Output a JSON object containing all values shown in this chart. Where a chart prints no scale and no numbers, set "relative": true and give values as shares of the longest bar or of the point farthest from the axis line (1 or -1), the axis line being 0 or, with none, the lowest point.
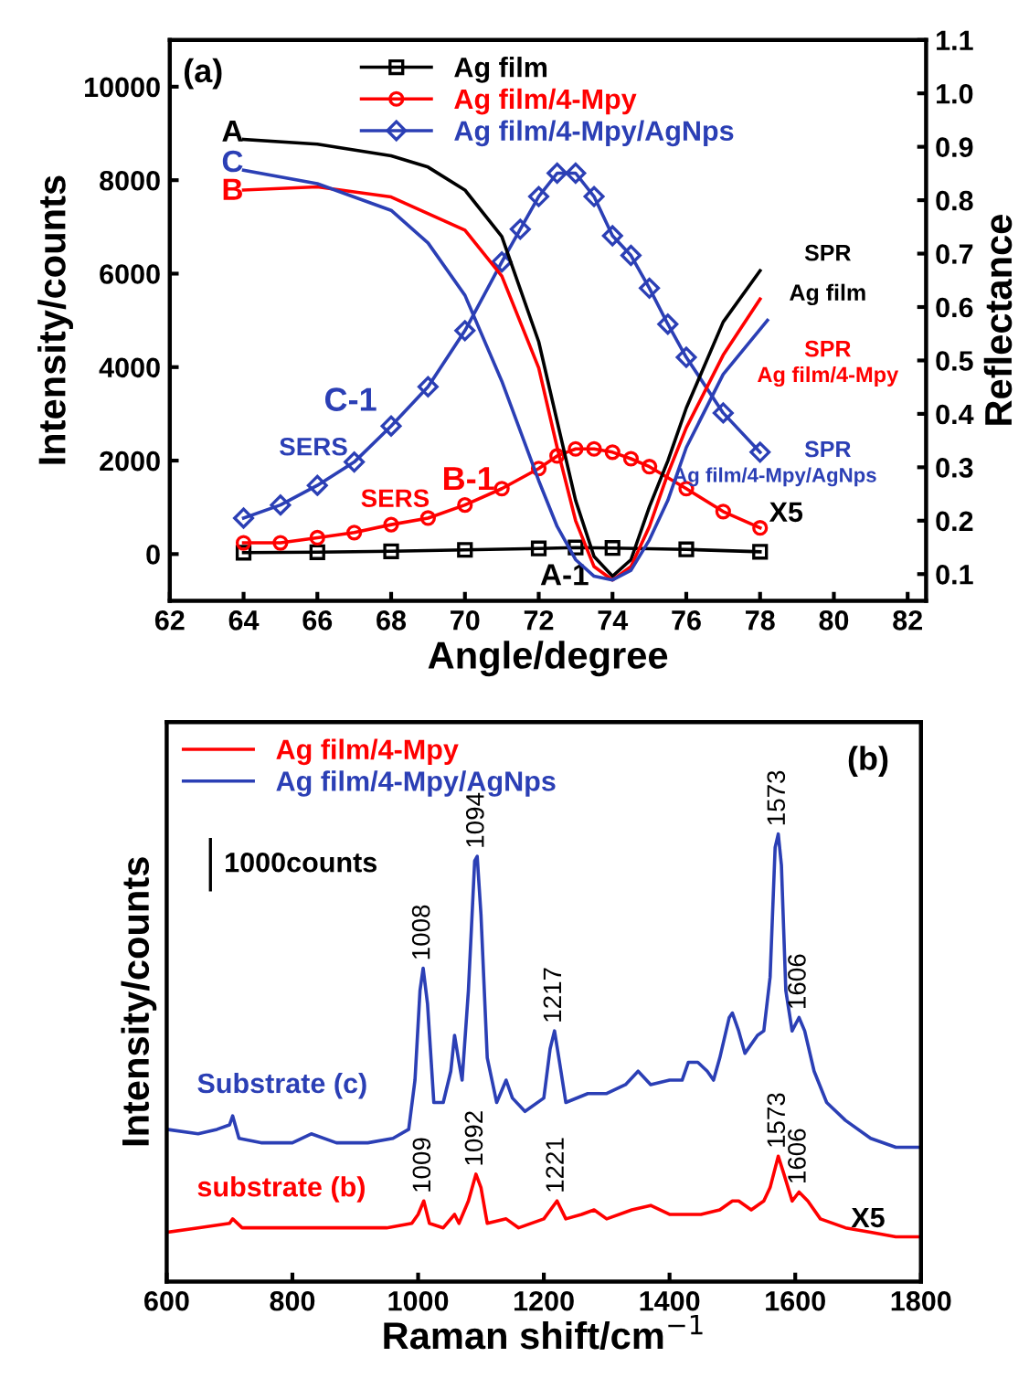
{
  "chart_data": [
    {
      "type": "line",
      "xlabel": "Angle/degree",
      "ylabel": "Intensity/counts",
      "y2label": "Reflectance",
      "xlim": [
        62,
        82.5
      ],
      "xticks": [
        62,
        64,
        66,
        68,
        70,
        72,
        74,
        76,
        78,
        80,
        82
      ],
      "ylim": [
        -1000,
        11000
      ],
      "yticks": [
        0,
        2000,
        4000,
        6000,
        8000,
        10000
      ],
      "y2lim": [
        0.05,
        1.1
      ],
      "y2ticks": [
        0.1,
        0.2,
        0.3,
        0.4,
        0.5,
        0.6,
        0.7,
        0.8,
        0.9,
        {
          "value": 1.0,
          "label": "1.0"
        },
        1.1
      ],
      "legend": "top",
      "series": [
        {
          "name": "Ag film",
          "color": "#000000",
          "marker": "square",
          "x": [
            64,
            66,
            68,
            70,
            72,
            73,
            74,
            76,
            78
          ],
          "values": [
            30,
            40,
            60,
            90,
            120,
            140,
            130,
            100,
            50
          ]
        },
        {
          "name": "Ag film/4-Mpy",
          "color": "#ff0000",
          "marker": "circle",
          "x": [
            64,
            65,
            66,
            67,
            68,
            69,
            70,
            71,
            72,
            72.5,
            73,
            73.5,
            74,
            74.5,
            75,
            76,
            77,
            78
          ],
          "values": [
            240,
            240,
            350,
            460,
            630,
            770,
            1050,
            1400,
            1830,
            2100,
            2250,
            2250,
            2180,
            2040,
            1870,
            1400,
            910,
            560
          ]
        },
        {
          "name": "Ag film/4-Mpy/AgNps",
          "color": "#2b3fb5",
          "marker": "diamond",
          "x": [
            64,
            65,
            66,
            67,
            68,
            69,
            70,
            71,
            71.5,
            72,
            72.5,
            73,
            73.5,
            74,
            74.5,
            75,
            75.5,
            76,
            77,
            78
          ],
          "values": [
            770,
            1050,
            1470,
            1970,
            2740,
            3580,
            4780,
            6250,
            6950,
            7650,
            8150,
            8150,
            7650,
            6810,
            6390,
            5690,
            4920,
            4210,
            3020,
            2180
          ]
        },
        {
          "color": "#000000",
          "axis": "y2",
          "x": [
            64,
            66,
            68,
            69,
            70,
            71,
            72,
            72.5,
            73,
            73.5,
            74,
            74.5,
            75,
            75.5,
            76,
            77,
            78
          ],
          "values": [
            0.914,
            0.905,
            0.883,
            0.862,
            0.819,
            0.732,
            0.535,
            0.386,
            0.238,
            0.133,
            0.096,
            0.127,
            0.226,
            0.312,
            0.411,
            0.572,
            0.668
          ]
        },
        {
          "color": "#ff0000",
          "axis": "y2",
          "x": [
            64,
            66,
            68,
            70,
            71,
            72,
            72.5,
            73,
            73.5,
            74,
            74.5,
            75,
            75.5,
            76,
            77,
            78
          ],
          "values": [
            0.819,
            0.825,
            0.806,
            0.744,
            0.658,
            0.486,
            0.337,
            0.2,
            0.114,
            0.089,
            0.114,
            0.189,
            0.288,
            0.374,
            0.51,
            0.615
          ]
        },
        {
          "color": "#2b3fb5",
          "axis": "y2",
          "x": [
            64,
            66,
            68,
            69,
            70,
            71,
            72,
            72.5,
            73,
            73.5,
            74,
            74.5,
            75,
            75.5,
            76,
            77,
            78.2
          ],
          "values": [
            0.856,
            0.831,
            0.781,
            0.72,
            0.622,
            0.461,
            0.275,
            0.189,
            0.127,
            0.096,
            0.089,
            0.107,
            0.164,
            0.238,
            0.337,
            0.474,
            0.575
          ]
        }
      ],
      "annotations": [
        "(a)",
        "A",
        "C",
        "B",
        "C-1",
        "B-1",
        "A-1",
        "SERS",
        "SERS",
        "SPR",
        "Ag film",
        "SPR",
        "Ag film/4-Mpy",
        "SPR",
        "Ag film/4-Mpy/AgNps",
        "X5"
      ]
    },
    {
      "type": "line",
      "relative": true,
      "xlabel": "Raman shift/cm$^{−1}$",
      "ylabel": "Intensity/counts",
      "xlim": [
        600,
        1800
      ],
      "xticks": [
        600,
        800,
        1000,
        1200,
        1400,
        1600,
        1800
      ],
      "tick_labels": "x",
      "legend": "top left",
      "series": [
        {
          "name": "Ag film/4-Mpy",
          "color": "#ff0000",
          "x": [
            600,
            650,
            700,
            705,
            720,
            800,
            850,
            900,
            950,
            990,
            1000,
            1009,
            1018,
            1040,
            1058,
            1065,
            1080,
            1092,
            1100,
            1110,
            1140,
            1160,
            1200,
            1221,
            1235,
            1260,
            1280,
            1300,
            1340,
            1370,
            1400,
            1450,
            1480,
            1500,
            1510,
            1530,
            1550,
            1560,
            1573,
            1582,
            1595,
            1606,
            1620,
            1640,
            1680,
            1720,
            1760,
            1800
          ],
          "values": [
            0.11,
            0.12,
            0.13,
            0.14,
            0.12,
            0.12,
            0.12,
            0.12,
            0.12,
            0.13,
            0.15,
            0.18,
            0.13,
            0.12,
            0.15,
            0.13,
            0.18,
            0.24,
            0.21,
            0.13,
            0.14,
            0.12,
            0.14,
            0.18,
            0.14,
            0.15,
            0.16,
            0.14,
            0.16,
            0.17,
            0.15,
            0.15,
            0.16,
            0.18,
            0.18,
            0.16,
            0.18,
            0.21,
            0.28,
            0.24,
            0.18,
            0.2,
            0.18,
            0.14,
            0.12,
            0.11,
            0.1,
            0.1
          ]
        },
        {
          "name": "Ag film/4-Mpy/AgNps",
          "color": "#2b3fb5",
          "x": [
            600,
            650,
            680,
            700,
            705,
            715,
            750,
            800,
            830,
            870,
            920,
            960,
            985,
            995,
            1003,
            1008,
            1015,
            1025,
            1040,
            1052,
            1058,
            1065,
            1070,
            1080,
            1090,
            1094,
            1100,
            1110,
            1125,
            1140,
            1150,
            1170,
            1200,
            1210,
            1217,
            1225,
            1235,
            1270,
            1300,
            1330,
            1350,
            1370,
            1400,
            1420,
            1430,
            1445,
            1460,
            1470,
            1480,
            1495,
            1500,
            1510,
            1520,
            1540,
            1550,
            1560,
            1568,
            1573,
            1578,
            1585,
            1595,
            1606,
            1615,
            1630,
            1650,
            1680,
            1720,
            1760,
            1800
          ],
          "values": [
            0.34,
            0.33,
            0.34,
            0.35,
            0.37,
            0.32,
            0.31,
            0.31,
            0.33,
            0.31,
            0.31,
            0.32,
            0.34,
            0.45,
            0.65,
            0.7,
            0.62,
            0.4,
            0.4,
            0.47,
            0.55,
            0.49,
            0.45,
            0.65,
            0.94,
            0.95,
            0.82,
            0.5,
            0.4,
            0.45,
            0.41,
            0.38,
            0.41,
            0.52,
            0.56,
            0.49,
            0.4,
            0.42,
            0.42,
            0.44,
            0.47,
            0.44,
            0.45,
            0.45,
            0.49,
            0.49,
            0.47,
            0.45,
            0.5,
            0.59,
            0.6,
            0.56,
            0.51,
            0.55,
            0.56,
            0.68,
            0.97,
            1,
            0.93,
            0.65,
            0.56,
            0.59,
            0.56,
            0.47,
            0.4,
            0.36,
            0.32,
            0.3,
            0.3
          ]
        }
      ],
      "annotations": [
        "(b)",
        "1000counts",
        "Substrate (c)",
        "substrate (b)",
        "X5",
        {
          "text": "1008",
          "x": 1008,
          "y": 0.7
        },
        {
          "text": "1094",
          "x": 1094,
          "y": 0.95
        },
        {
          "text": "1217",
          "x": 1217,
          "y": 0.56
        },
        {
          "text": "1573",
          "x": 1573,
          "y": 1
        },
        {
          "text": "1606",
          "x": 1606,
          "y": 0.59
        },
        {
          "text": "1009",
          "x": 1009,
          "y": 0.18
        },
        {
          "text": "1092",
          "x": 1092,
          "y": 0.24
        },
        {
          "text": "1221",
          "x": 1221,
          "y": 0.18
        },
        {
          "text": "1573",
          "x": 1573,
          "y": 0.28
        },
        {
          "text": "1606",
          "x": 1606,
          "y": 0.2
        }
      ]
    }
  ]
}
